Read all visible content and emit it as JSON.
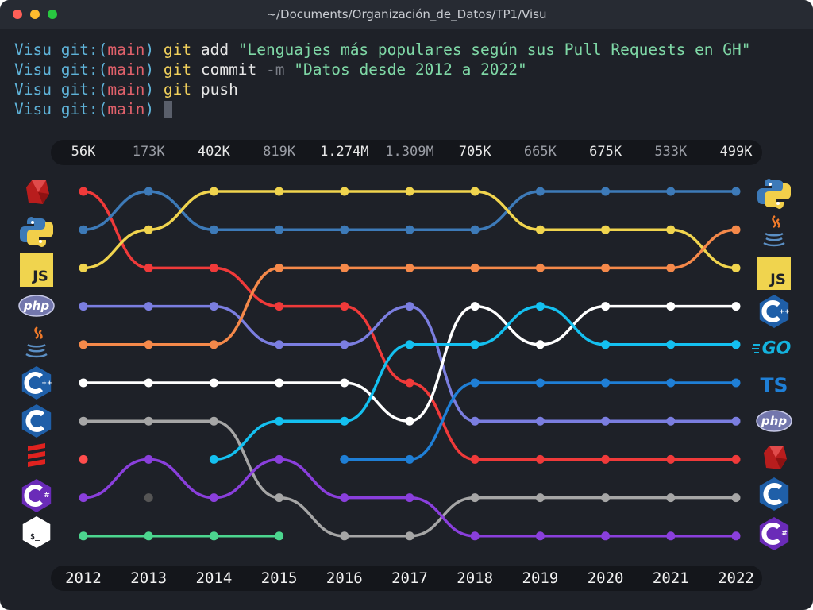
{
  "window": {
    "title": "~/Documents/Organización_de_Datos/TP1/Visu"
  },
  "terminal": {
    "lines": [
      {
        "dir": "Visu",
        "git": " git:(",
        "branch": "main",
        "close": ") ",
        "cmd": "git",
        "rest": " add ",
        "flag": "",
        "str": "\"Lenguajes más populares según sus Pull Requests en GH\""
      },
      {
        "dir": "Visu",
        "git": " git:(",
        "branch": "main",
        "close": ") ",
        "cmd": "git",
        "rest": " commit ",
        "flag": "-m ",
        "str": "\"Datos desde 2012 a 2022\""
      },
      {
        "dir": "Visu",
        "git": " git:(",
        "branch": "main",
        "close": ") ",
        "cmd": "git",
        "rest": " push",
        "flag": "",
        "str": ""
      },
      {
        "dir": "Visu",
        "git": " git:(",
        "branch": "main",
        "close": ") ",
        "cmd": "",
        "rest": "",
        "flag": "",
        "str": ""
      }
    ]
  },
  "chart_data": {
    "type": "line",
    "title": "Lenguajes más populares según sus Pull Requests en GH",
    "subtitle": "Datos desde 2012 a 2022",
    "x": [
      "2012",
      "2013",
      "2014",
      "2015",
      "2016",
      "2017",
      "2018",
      "2019",
      "2020",
      "2021",
      "2022"
    ],
    "totals": [
      "56K",
      "173K",
      "402K",
      "819K",
      "1.274M",
      "1.309M",
      "705K",
      "665K",
      "675K",
      "533K",
      "499K"
    ],
    "totals_emphasis": [
      true,
      false,
      true,
      false,
      true,
      false,
      true,
      false,
      true,
      false,
      true
    ],
    "y_axis": "rank (1 = top)",
    "ylim": [
      10,
      1
    ],
    "series": [
      {
        "icon": "ruby-icon",
        "color": "#f03a3a",
        "values": [
          1,
          3,
          3,
          4,
          4,
          6,
          8,
          8,
          8,
          8,
          8
        ]
      },
      {
        "icon": "python-icon",
        "color": "#3d7ab8",
        "values": [
          2,
          1,
          2,
          2,
          2,
          2,
          2,
          1,
          1,
          1,
          1
        ]
      },
      {
        "icon": "javascript-icon",
        "color": "#f0d44e",
        "values": [
          3,
          2,
          1,
          1,
          1,
          1,
          1,
          2,
          2,
          2,
          3
        ]
      },
      {
        "icon": "php-icon",
        "color": "#7b7ee0",
        "values": [
          4,
          4,
          4,
          5,
          5,
          4,
          7,
          7,
          7,
          7,
          7
        ]
      },
      {
        "icon": "java-icon",
        "color": "#f5894a",
        "values": [
          5,
          5,
          5,
          3,
          3,
          3,
          3,
          3,
          3,
          3,
          2
        ]
      },
      {
        "icon": "cpp-icon",
        "color": "#ffffff",
        "values": [
          6,
          6,
          6,
          6,
          6,
          7,
          4,
          5,
          4,
          4,
          4
        ]
      },
      {
        "icon": "c-icon",
        "color": "#a6a6a6",
        "values": [
          7,
          7,
          7,
          9,
          10,
          10,
          9,
          9,
          9,
          9,
          9
        ]
      },
      {
        "icon": "scala-icon",
        "color": "#ff4d4d",
        "values": [
          8,
          null,
          null,
          null,
          null,
          null,
          null,
          null,
          null,
          null,
          null
        ]
      },
      {
        "icon": "csharp-icon",
        "color": "#8a3fdc",
        "values": [
          9,
          8,
          9,
          8,
          9,
          9,
          10,
          10,
          10,
          10,
          10
        ]
      },
      {
        "icon": "shell-icon",
        "color": "#4cd68f",
        "values": [
          10,
          10,
          10,
          10,
          null,
          null,
          null,
          null,
          null,
          null,
          null
        ]
      },
      {
        "icon": "go-icon",
        "color": "#14c0f0",
        "values": [
          null,
          null,
          8,
          7,
          7,
          5,
          5,
          4,
          5,
          5,
          5
        ]
      },
      {
        "icon": "typescript-icon",
        "color": "#1f7fd6",
        "values": [
          null,
          null,
          null,
          null,
          8,
          8,
          6,
          6,
          6,
          6,
          6
        ]
      },
      {
        "icon": "unknown-language-icon",
        "color": "#555555",
        "values": [
          null,
          9,
          null,
          null,
          null,
          null,
          null,
          null,
          null,
          null,
          null
        ]
      }
    ],
    "left_icons": [
      "ruby-icon",
      "python-icon",
      "javascript-icon",
      "php-icon",
      "java-icon",
      "cpp-icon",
      "c-icon",
      "scala-icon",
      "csharp-icon",
      "shell-icon"
    ],
    "right_icons": [
      "python-icon",
      "java-icon",
      "javascript-icon",
      "cpp-icon",
      "go-icon",
      "typescript-icon",
      "php-icon",
      "ruby-icon",
      "c-icon",
      "csharp-icon"
    ],
    "icon_text": {
      "javascript": "JS",
      "php": "php",
      "go": "GO",
      "typescript": "TS",
      "shell": "$_"
    },
    "grid": false,
    "legend": "icons on left and right sides"
  }
}
